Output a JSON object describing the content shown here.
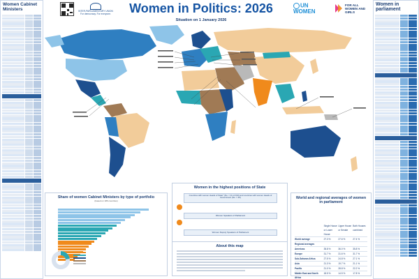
{
  "header": {
    "title": "Women in Politics: 2026",
    "subtitle": "Situation on 1 January 2026",
    "ipu_label": "INTER-PARLIAMENTARY UNION",
    "ipu_tagline": "For democracy. For everyone.",
    "unwomen_label": "UN WOMEN",
    "forall_label": "FOR ALL WOMEN AND GIRLS"
  },
  "left_panel": {
    "title": "Women Cabinet Ministers"
  },
  "right_panel": {
    "title": "Women in parliament"
  },
  "panels": {
    "cabinet_title": "Share of women Cabinet Ministers by type of portfolio",
    "cabinet_subtitle": "(based on 186 countries)",
    "positions_title": "Women in the highest positions of State",
    "positions_line1": "Countries with women Heads of State* (No. = 31 of 193) and countries with women Heads of Government (No. = 26)",
    "positions_line2": "Women Speakers of Parliament",
    "positions_line3": "Women Deputy Speakers of Parliament",
    "about_title": "About this map",
    "avg_title": "World and regional averages of women in parliament"
  },
  "averages": {
    "columns": [
      "",
      "Single House or Lower House",
      "Upper House or Senate",
      "Both Houses combined"
    ],
    "rows": [
      [
        "World average",
        "27.3 %",
        "27.6 %",
        "27.4 %"
      ],
      [
        "Regional averages",
        "",
        "",
        ""
      ],
      [
        "Americas",
        "35.8 %",
        "36.0 %",
        "35.8 %"
      ],
      [
        "Europe",
        "31.7 %",
        "31.6 %",
        "31.7 %"
      ],
      [
        "Sub-Saharan Africa",
        "27.5 %",
        "24.8 %",
        "27.1 %"
      ],
      [
        "Asia",
        "21.3 %",
        "19.7 %",
        "21.1 %"
      ],
      [
        "Pacific",
        "21.0 %",
        "28.8 %",
        "22.2 %"
      ],
      [
        "Middle East and North Africa",
        "18.5 %",
        "14.5 %",
        "17.8 %"
      ]
    ]
  },
  "colors": {
    "title_blue": "#1554a3",
    "dark_blue": "#1d4f8f",
    "mid_blue": "#2f7fc1",
    "light_blue": "#8ec4e8",
    "tan": "#f2cc9a",
    "orange": "#f08a1c",
    "brown": "#a07a55",
    "teal": "#2aa7b3",
    "grey": "#b9b9b9",
    "white": "#ffffff"
  }
}
